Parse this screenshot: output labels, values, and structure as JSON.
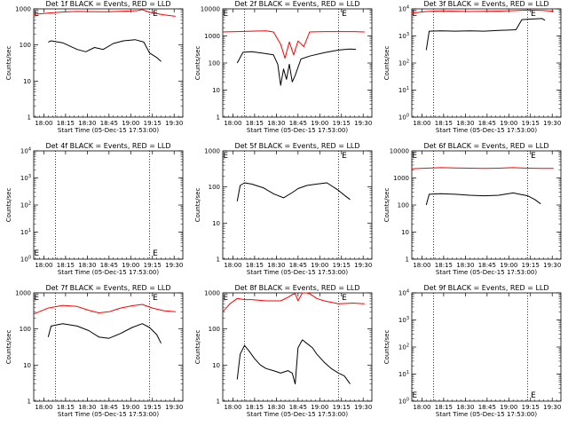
{
  "colors": {
    "events": "#000000",
    "lld": "#ff0000"
  },
  "shared": {
    "start_time_label": "Start Time (05-Dec-15 17:53:00)",
    "ylabel": "Counts/sec",
    "xtick_labels": [
      "18:00",
      "18:15",
      "18:30",
      "18:45",
      "19:00",
      "19:15",
      "19:30"
    ],
    "x_range_minutes_after_start": [
      0,
      103
    ],
    "markers": {
      "start": "E",
      "end": "E"
    }
  },
  "chart_data": [
    {
      "type": "line",
      "title": "Det 1f BLACK = Events, RED = LLD",
      "ylog": true,
      "ylim": [
        1,
        1000
      ],
      "ytick_labels": [
        "1",
        "10",
        "100",
        "1000"
      ],
      "series": [
        {
          "color": "events",
          "x": [
            10,
            12,
            20,
            30,
            36,
            42,
            48,
            55,
            62,
            70,
            76,
            80,
            85,
            88
          ],
          "y": [
            120,
            130,
            115,
            75,
            65,
            85,
            75,
            110,
            130,
            140,
            120,
            60,
            45,
            35
          ]
        },
        {
          "color": "lld",
          "x": [
            0,
            10,
            20,
            30,
            40,
            50,
            60,
            68,
            72,
            75,
            80,
            90,
            98
          ],
          "y": [
            700,
            760,
            820,
            850,
            840,
            830,
            860,
            880,
            900,
            950,
            800,
            680,
            620
          ]
        }
      ]
    },
    {
      "type": "line",
      "title": "Det 2f BLACK = Events, RED = LLD",
      "ylog": true,
      "ylim": [
        1,
        10000
      ],
      "ytick_labels": [
        "1",
        "10",
        "100",
        "1000",
        "10000"
      ],
      "series": [
        {
          "color": "events",
          "x": [
            10,
            14,
            20,
            28,
            35,
            38,
            40,
            42,
            44,
            46,
            48,
            50,
            54,
            60,
            70,
            80,
            85,
            88,
            92
          ],
          "y": [
            100,
            250,
            260,
            230,
            200,
            90,
            15,
            60,
            25,
            90,
            20,
            35,
            140,
            180,
            240,
            300,
            320,
            330,
            320
          ]
        },
        {
          "color": "lld",
          "x": [
            0,
            10,
            20,
            30,
            35,
            40,
            43,
            46,
            49,
            52,
            56,
            60,
            70,
            80,
            90,
            98
          ],
          "y": [
            1400,
            1450,
            1500,
            1550,
            1400,
            500,
            150,
            600,
            200,
            650,
            400,
            1400,
            1450,
            1450,
            1450,
            1400
          ]
        }
      ]
    },
    {
      "type": "line",
      "title": "Det 3f BLACK = Events, RED = LLD",
      "ylog": true,
      "ylim": [
        1,
        10000
      ],
      "ytick_labels": [
        "10^0",
        "10^1",
        "10^2",
        "10^3",
        "10^4"
      ],
      "series": [
        {
          "color": "events",
          "x": [
            10,
            12,
            20,
            30,
            40,
            50,
            60,
            67,
            72,
            76,
            82,
            90,
            92
          ],
          "y": [
            300,
            1500,
            1550,
            1500,
            1550,
            1500,
            1600,
            1650,
            1700,
            4000,
            4200,
            4400,
            3800
          ]
        },
        {
          "color": "lld",
          "x": [
            0,
            10,
            20,
            30,
            40,
            50,
            60,
            70,
            80,
            90,
            98
          ],
          "y": [
            7000,
            8000,
            8500,
            8200,
            8000,
            8100,
            8300,
            8600,
            9000,
            8700,
            8200
          ]
        }
      ]
    },
    {
      "type": "line",
      "title": "Det 4f BLACK = Events, RED = LLD",
      "ylog": true,
      "ylim": [
        1,
        10000
      ],
      "ytick_labels": [
        "10^0",
        "10^1",
        "10^2",
        "10^3",
        "10^4"
      ],
      "series": []
    },
    {
      "type": "line",
      "title": "Det 5f BLACK = Events, RED = LLD",
      "ylog": true,
      "ylim": [
        1,
        1000
      ],
      "ytick_labels": [
        "1",
        "10",
        "100",
        "1000"
      ],
      "series": [
        {
          "color": "events",
          "x": [
            10,
            12,
            15,
            20,
            28,
            35,
            42,
            48,
            52,
            58,
            65,
            72,
            80,
            85,
            88
          ],
          "y": [
            40,
            110,
            130,
            120,
            95,
            65,
            50,
            70,
            90,
            110,
            120,
            130,
            80,
            55,
            45
          ]
        }
      ]
    },
    {
      "type": "line",
      "title": "Det 6f BLACK = Events, RED = LLD",
      "ylog": true,
      "ylim": [
        1,
        10000
      ],
      "ytick_labels": [
        "1",
        "10",
        "100",
        "1000",
        "10000"
      ],
      "series": [
        {
          "color": "events",
          "x": [
            10,
            12,
            20,
            30,
            40,
            50,
            60,
            70,
            80,
            85,
            89
          ],
          "y": [
            100,
            250,
            260,
            250,
            230,
            220,
            230,
            280,
            220,
            160,
            110
          ]
        },
        {
          "color": "lld",
          "x": [
            0,
            10,
            20,
            30,
            40,
            50,
            60,
            70,
            80,
            90,
            98
          ],
          "y": [
            2200,
            2300,
            2400,
            2350,
            2300,
            2250,
            2300,
            2400,
            2300,
            2250,
            2250
          ]
        }
      ]
    },
    {
      "type": "line",
      "title": "Det 7f BLACK = Events, RED = LLD",
      "ylog": true,
      "ylim": [
        1,
        1000
      ],
      "ytick_labels": [
        "1",
        "10",
        "100",
        "1000"
      ],
      "series": [
        {
          "color": "events",
          "x": [
            10,
            12,
            20,
            30,
            38,
            45,
            52,
            60,
            68,
            75,
            80,
            85,
            88
          ],
          "y": [
            60,
            120,
            140,
            120,
            90,
            60,
            55,
            75,
            110,
            140,
            110,
            70,
            40
          ]
        },
        {
          "color": "lld",
          "x": [
            0,
            10,
            20,
            30,
            38,
            45,
            52,
            60,
            68,
            75,
            82,
            90,
            98
          ],
          "y": [
            260,
            380,
            450,
            420,
            330,
            280,
            300,
            380,
            440,
            480,
            380,
            320,
            300
          ]
        }
      ]
    },
    {
      "type": "line",
      "title": "Det 8f BLACK = Events, RED = LLD",
      "ylog": true,
      "ylim": [
        1,
        1000
      ],
      "ytick_labels": [
        "1",
        "10",
        "100",
        "1000"
      ],
      "series": [
        {
          "color": "events",
          "x": [
            10,
            12,
            15,
            18,
            22,
            26,
            30,
            35,
            40,
            45,
            48,
            50,
            52,
            55,
            58,
            62,
            65,
            70,
            75,
            80,
            84,
            88
          ],
          "y": [
            4,
            20,
            35,
            25,
            15,
            10,
            8,
            7,
            6,
            7,
            6,
            3,
            30,
            50,
            40,
            30,
            20,
            12,
            8,
            6,
            5,
            3
          ]
        },
        {
          "color": "lld",
          "x": [
            0,
            5,
            10,
            15,
            20,
            30,
            40,
            45,
            48,
            50,
            52,
            55,
            58,
            60,
            65,
            70,
            80,
            90,
            98
          ],
          "y": [
            300,
            500,
            700,
            650,
            650,
            600,
            600,
            750,
            900,
            950,
            600,
            1000,
            1000,
            950,
            700,
            600,
            500,
            520,
            500
          ]
        }
      ]
    },
    {
      "type": "line",
      "title": "Det 9f BLACK = Events, RED = LLD",
      "ylog": true,
      "ylim": [
        1,
        10000
      ],
      "ytick_labels": [
        "10^0",
        "10^1",
        "10^2",
        "10^3",
        "10^4"
      ],
      "series": []
    }
  ]
}
